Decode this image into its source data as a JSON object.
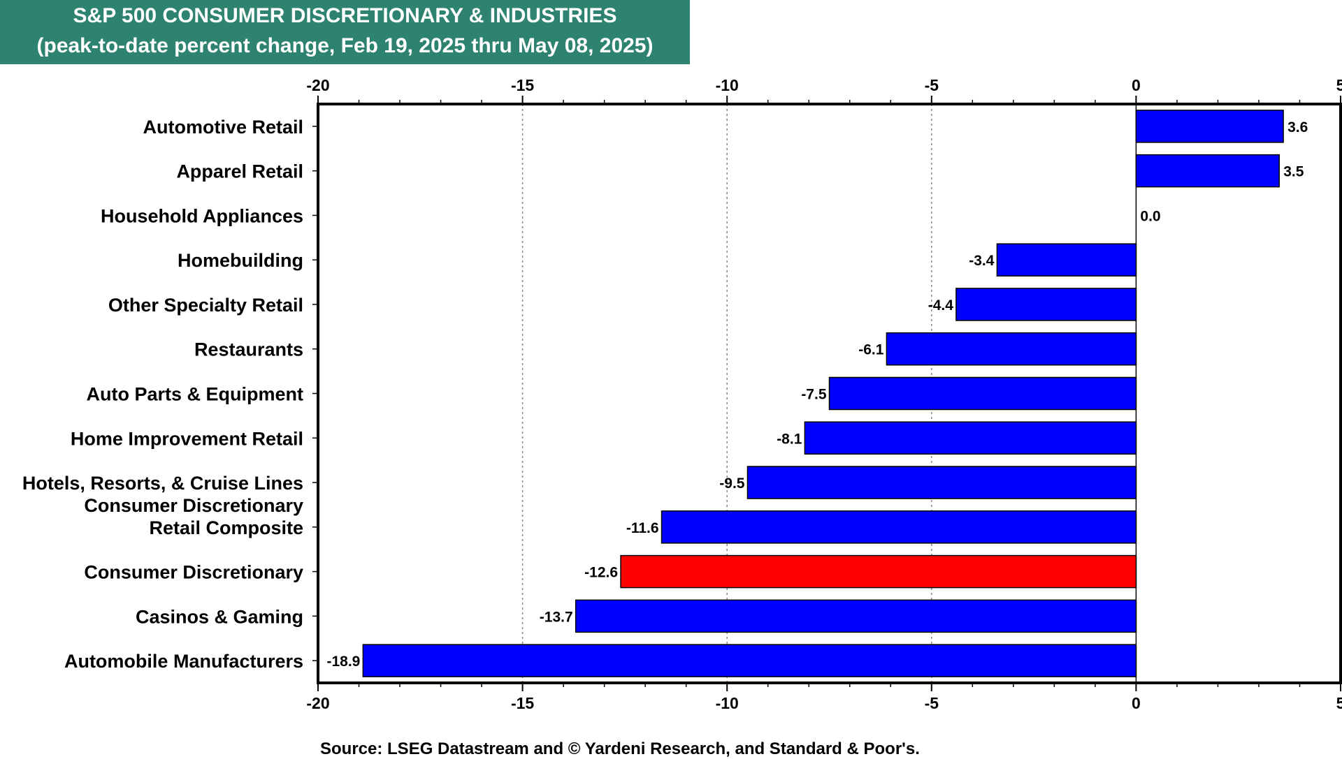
{
  "header": {
    "title": "S&P 500 CONSUMER DISCRETIONARY & INDUSTRIES",
    "subtitle": "(peak-to-date percent change, Feb 19, 2025 thru May 08, 2025)"
  },
  "footer": {
    "source": "Source: LSEG Datastream and © Yardeni Research, and Standard & Poor's."
  },
  "colors": {
    "title_background": "#2e8270",
    "bar_default": "#0000ff",
    "bar_highlight": "#ff0000"
  },
  "chart_data": {
    "type": "bar",
    "orientation": "horizontal",
    "title": "S&P 500 CONSUMER DISCRETIONARY & INDUSTRIES",
    "subtitle": "(peak-to-date percent change, Feb 19, 2025 thru May 08, 2025)",
    "xlim": [
      -20,
      5
    ],
    "xticks": [
      -20,
      -15,
      -10,
      -5,
      0,
      5
    ],
    "x_axis_position": "top and bottom",
    "grid": "vertical dotted",
    "highlight_category": "Consumer Discretionary",
    "categories": [
      "Automotive Retail",
      "Apparel Retail",
      "Household Appliances",
      "Homebuilding",
      "Other Specialty Retail",
      "Restaurants",
      "Auto Parts & Equipment",
      "Home Improvement Retail",
      "Hotels, Resorts, & Cruise Lines",
      "Consumer Discretionary Retail Composite",
      "Consumer Discretionary",
      "Casinos & Gaming",
      "Automobile Manufacturers"
    ],
    "category_label_lines": [
      [
        "Automotive Retail"
      ],
      [
        "Apparel Retail"
      ],
      [
        "Household Appliances"
      ],
      [
        "Homebuilding"
      ],
      [
        "Other Specialty Retail"
      ],
      [
        "Restaurants"
      ],
      [
        "Auto Parts & Equipment"
      ],
      [
        "Home Improvement Retail"
      ],
      [
        "Hotels, Resorts, & Cruise Lines"
      ],
      [
        "Consumer Discretionary",
        "Retail Composite"
      ],
      [
        "Consumer Discretionary"
      ],
      [
        "Casinos & Gaming"
      ],
      [
        "Automobile Manufacturers"
      ]
    ],
    "values": [
      3.6,
      3.5,
      0.0,
      -3.4,
      -4.4,
      -6.1,
      -7.5,
      -8.1,
      -9.5,
      -11.6,
      -12.6,
      -13.7,
      -18.9
    ],
    "value_labels": [
      "3.6",
      "3.5",
      "0.0",
      "-3.4",
      "-4.4",
      "-6.1",
      "-7.5",
      "-8.1",
      "-9.5",
      "-11.6",
      "-12.6",
      "-13.7",
      "-18.9"
    ]
  }
}
